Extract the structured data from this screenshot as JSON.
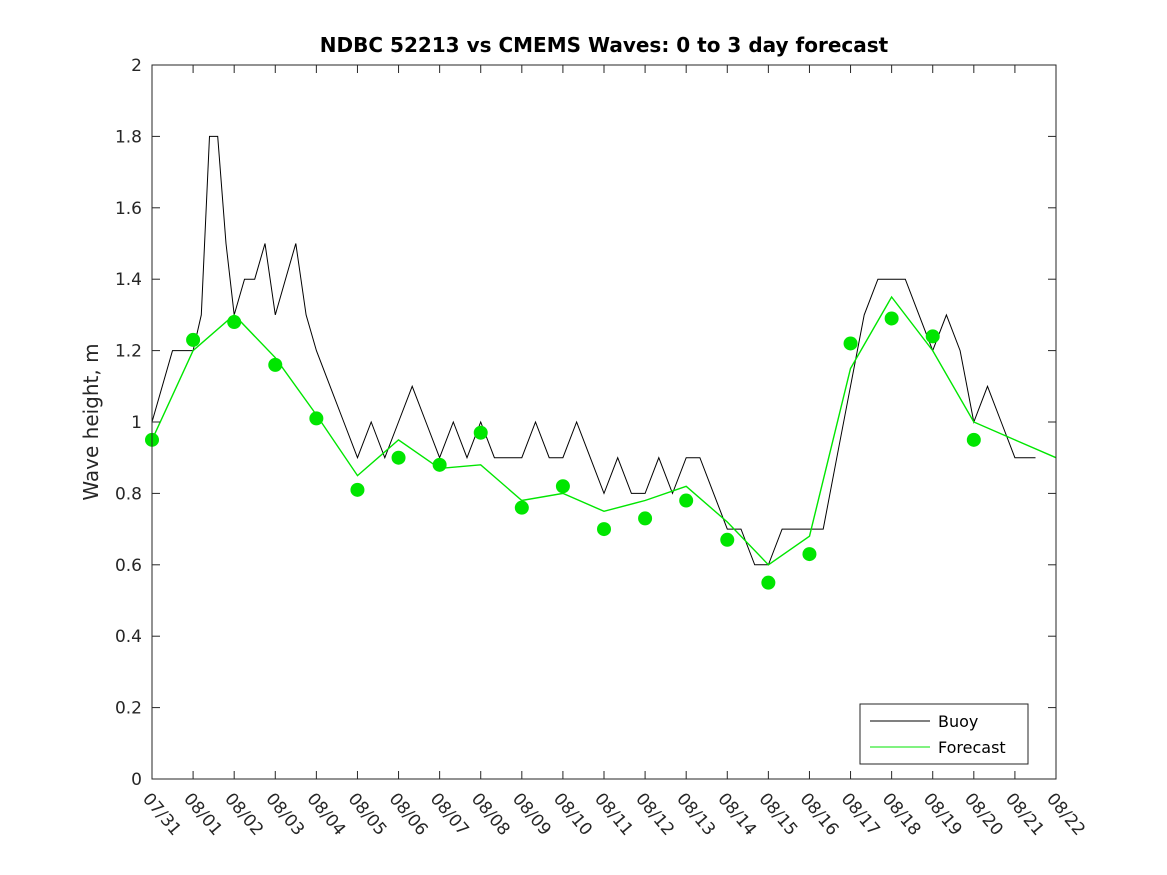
{
  "chart_data": {
    "type": "line",
    "title": "NDBC 52213 vs CMEMS Waves: 0 to 3 day forecast",
    "xlabel": "",
    "ylabel": "Wave height, m",
    "x_tick_labels": [
      "07/31",
      "08/01",
      "08/02",
      "08/03",
      "08/04",
      "08/05",
      "08/06",
      "08/07",
      "08/08",
      "08/09",
      "08/10",
      "08/11",
      "08/12",
      "08/13",
      "08/14",
      "08/15",
      "08/16",
      "08/17",
      "08/18",
      "08/19",
      "08/20",
      "08/21",
      "08/22"
    ],
    "xlim": [
      "07/31",
      "08/22"
    ],
    "ylim": [
      0,
      2
    ],
    "y_ticks": [
      0,
      0.2,
      0.4,
      0.6,
      0.8,
      1,
      1.2,
      1.4,
      1.6,
      1.8,
      2
    ],
    "y_tick_labels": [
      "0",
      "0.2",
      "0.4",
      "0.6",
      "0.8",
      "1",
      "1.2",
      "1.4",
      "1.6",
      "1.8",
      "2"
    ],
    "grid": false,
    "legend": {
      "position": "bottom-right",
      "entries": [
        "Buoy",
        "Forecast"
      ]
    },
    "colors": {
      "buoy": "#000000",
      "forecast": "#00e600"
    },
    "series": [
      {
        "name": "Buoy",
        "x": [
          "07/31",
          "07/31",
          "08/01",
          "08/01",
          "08/01",
          "08/01",
          "08/01",
          "08/02",
          "08/02",
          "08/02",
          "08/02",
          "08/03",
          "08/03",
          "08/03",
          "08/03",
          "08/04",
          "08/04",
          "08/04",
          "08/05",
          "08/05",
          "08/05",
          "08/06",
          "08/06",
          "08/06",
          "08/07",
          "08/07",
          "08/07",
          "08/08",
          "08/08",
          "08/08",
          "08/09",
          "08/09",
          "08/09",
          "08/10",
          "08/10",
          "08/10",
          "08/11",
          "08/11",
          "08/11",
          "08/12",
          "08/12",
          "08/12",
          "08/13",
          "08/13",
          "08/13",
          "08/14",
          "08/14",
          "08/14",
          "08/15",
          "08/15",
          "08/15",
          "08/16",
          "08/16",
          "08/16",
          "08/17",
          "08/17",
          "08/17",
          "08/18",
          "08/18",
          "08/18",
          "08/19",
          "08/19",
          "08/19",
          "08/20",
          "08/20",
          "08/20",
          "08/21",
          "08/21"
        ],
        "y": [
          1.0,
          1.2,
          1.2,
          1.3,
          1.8,
          1.8,
          1.5,
          1.3,
          1.4,
          1.4,
          1.5,
          1.3,
          1.4,
          1.5,
          1.3,
          1.2,
          1.1,
          1.0,
          0.9,
          1.0,
          0.9,
          1.0,
          1.1,
          1.0,
          0.9,
          1.0,
          0.9,
          1.0,
          0.9,
          0.9,
          0.9,
          1.0,
          0.9,
          0.9,
          1.0,
          0.9,
          0.8,
          0.9,
          0.8,
          0.8,
          0.9,
          0.8,
          0.9,
          0.9,
          0.8,
          0.7,
          0.7,
          0.6,
          0.6,
          0.7,
          0.7,
          0.7,
          0.7,
          0.9,
          1.1,
          1.3,
          1.4,
          1.4,
          1.4,
          1.3,
          1.2,
          1.3,
          1.2,
          1.0,
          1.1,
          1.0,
          0.9,
          0.9
        ]
      },
      {
        "name": "Forecast",
        "x": [
          "07/31",
          "08/01",
          "08/02",
          "08/03",
          "08/04",
          "08/05",
          "08/06",
          "08/07",
          "08/08",
          "08/09",
          "08/10",
          "08/11",
          "08/12",
          "08/13",
          "08/14",
          "08/15",
          "08/16",
          "08/17",
          "08/18",
          "08/19",
          "08/20",
          "08/21",
          "08/22"
        ],
        "y": [
          0.95,
          1.2,
          1.3,
          1.18,
          1.02,
          0.85,
          0.95,
          0.87,
          0.88,
          0.78,
          0.8,
          0.75,
          0.78,
          0.82,
          0.72,
          0.6,
          0.68,
          1.15,
          1.35,
          1.2,
          1.0,
          0.95,
          0.9
        ]
      }
    ],
    "markers": {
      "x": [
        "07/31",
        "08/01",
        "08/02",
        "08/03",
        "08/04",
        "08/05",
        "08/06",
        "08/07",
        "08/08",
        "08/09",
        "08/10",
        "08/11",
        "08/12",
        "08/13",
        "08/14",
        "08/15",
        "08/16",
        "08/17",
        "08/18",
        "08/19",
        "08/20"
      ],
      "y": [
        0.95,
        1.23,
        1.28,
        1.16,
        1.01,
        0.81,
        0.9,
        0.88,
        0.97,
        0.76,
        0.82,
        0.7,
        0.73,
        0.78,
        0.67,
        0.55,
        0.63,
        1.22,
        1.29,
        1.24,
        0.95
      ]
    }
  }
}
